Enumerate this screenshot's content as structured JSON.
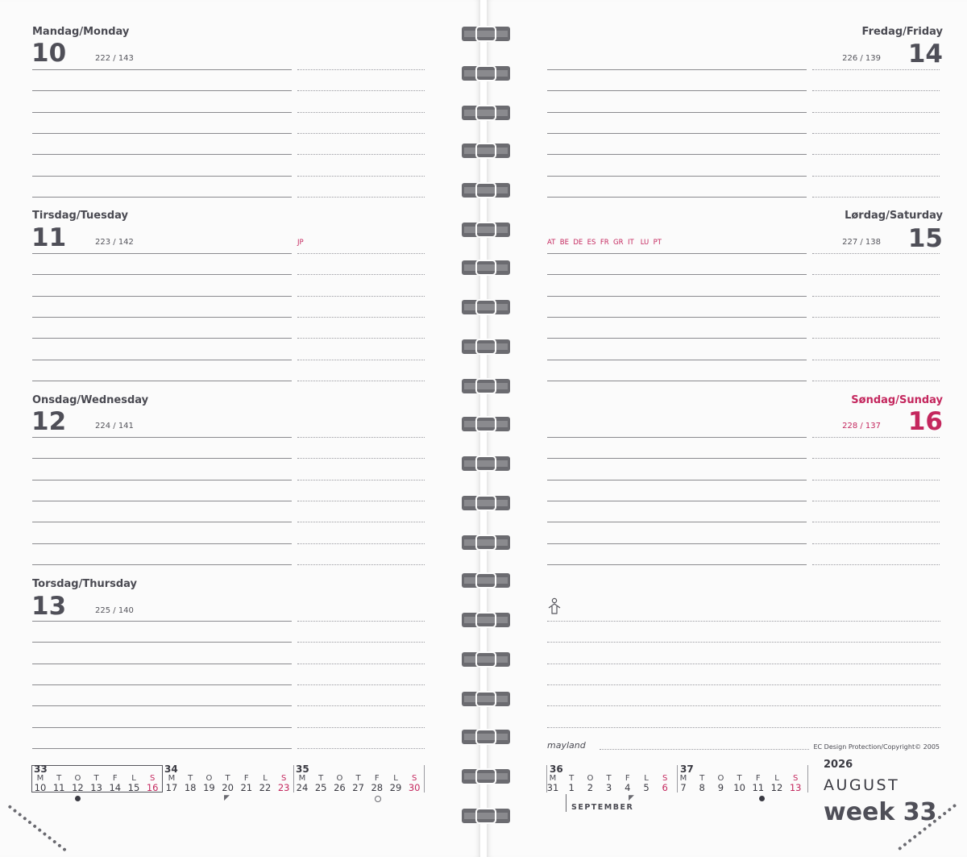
{
  "left_page": {
    "days": [
      {
        "name": "Mandag/Monday",
        "number": "10",
        "day_of_year": "222 / 143",
        "holiday_countries": ""
      },
      {
        "name": "Tirsdag/Tuesday",
        "number": "11",
        "day_of_year": "223 / 142",
        "holiday_countries": "JP"
      },
      {
        "name": "Onsdag/Wednesday",
        "number": "12",
        "day_of_year": "224 / 141",
        "holiday_countries": ""
      },
      {
        "name": "Torsdag/Thursday",
        "number": "13",
        "day_of_year": "225 / 140",
        "holiday_countries": ""
      }
    ],
    "mini_calendar": {
      "weeks": [
        "33",
        "34",
        "35"
      ],
      "day_letters": [
        "M",
        "T",
        "O",
        "T",
        "F",
        "L",
        "S"
      ],
      "dates": [
        [
          "10",
          "11",
          "12",
          "13",
          "14",
          "15",
          "16"
        ],
        [
          "17",
          "18",
          "19",
          "20",
          "21",
          "22",
          "23"
        ],
        [
          "24",
          "25",
          "26",
          "27",
          "28",
          "29",
          "30"
        ]
      ]
    }
  },
  "right_page": {
    "days": [
      {
        "name": "Fredag/Friday",
        "number": "14",
        "day_of_year": "226 / 139",
        "holiday_countries": ""
      },
      {
        "name": "Lørdag/Saturday",
        "number": "15",
        "day_of_year": "227 / 138",
        "holiday_countries": "AT  BE  DE  ES  FR  GR  IT   LU  PT"
      },
      {
        "name": "Søndag/Sunday",
        "number": "16",
        "day_of_year": "228 / 137",
        "holiday_countries": ""
      }
    ],
    "brand": "mayland",
    "copyright": "EC Design Protection/Copyright© 2005",
    "mini_calendar": {
      "weeks": [
        "36",
        "37"
      ],
      "day_letters": [
        "M",
        "T",
        "O",
        "T",
        "F",
        "L",
        "S"
      ],
      "dates": [
        [
          "31",
          "1",
          "2",
          "3",
          "4",
          "5",
          "6"
        ],
        [
          "7",
          "8",
          "9",
          "10",
          "11",
          "12",
          "13"
        ]
      ],
      "next_month": "SEPTEMBER"
    },
    "year": "2026",
    "month": "AUGUST",
    "week_label": "week 33"
  },
  "icons": {
    "person": "person-outline-icon",
    "new_moon": "new-moon-icon",
    "full_moon": "full-moon-icon",
    "quarter_moon": "quarter-moon-icon"
  },
  "colors": {
    "accent_red": "#c4275e",
    "text_dark": "#4a4a52",
    "spiral": "#6b6b70"
  }
}
